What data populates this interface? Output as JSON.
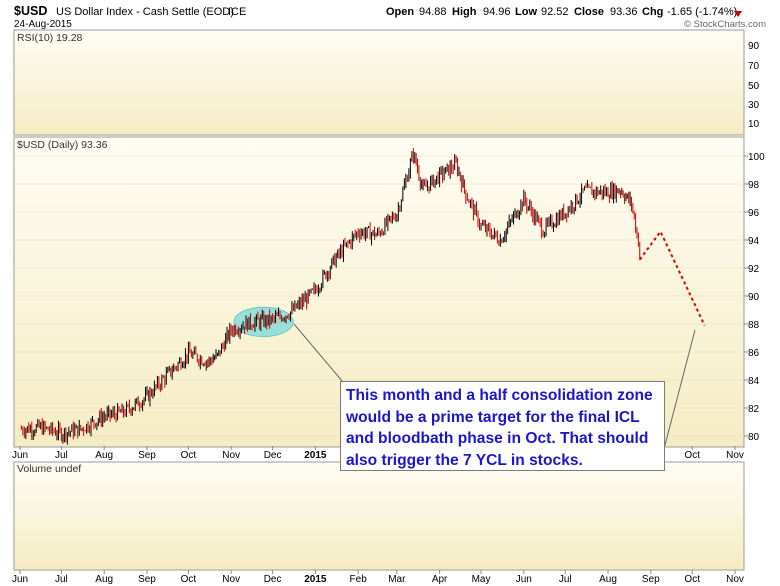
{
  "header": {
    "symbol": "$USD",
    "name": "US Dollar Index - Cash Settle (EOD)",
    "exchange": "ICE",
    "date": "24-Aug-2015",
    "watermark": "© StockCharts.com",
    "open_label": "Open",
    "open": "94.88",
    "high_label": "High",
    "high": "94.96",
    "low_label": "Low",
    "low": "92.52",
    "close_label": "Close",
    "close": "93.36",
    "chg_label": "Chg",
    "chg": "-1.65 (-1.74%)"
  },
  "colors": {
    "up": "#000000",
    "down": "#cc0000",
    "projection": "#e00000",
    "highlight": "#7fdad6",
    "callout_text": "#1a17c8",
    "panel_bg_top": "#fffdf4",
    "panel_bg_bottom": "#f5ecc4"
  },
  "panels": {
    "rsi": {
      "label": "RSI(10) 19.28",
      "ticks": [
        "90",
        "70",
        "50",
        "30",
        "10"
      ]
    },
    "price": {
      "label": "$USD (Daily) 93.36"
    },
    "volume": {
      "label": "Volume undef"
    }
  },
  "x_axis": {
    "labels": [
      "Jun",
      "Jul",
      "Aug",
      "Sep",
      "Oct",
      "Nov",
      "Dec",
      "2015",
      "Feb",
      "Mar",
      "Apr",
      "May",
      "Jun",
      "Jul",
      "Aug",
      "Sep",
      "Oct",
      "Nov"
    ]
  },
  "callout": {
    "lines": [
      "This month and a half consolidation zone",
      "would be a prime target for the final ICL",
      "and bloodbath phase in Oct. That should",
      "also trigger the 7 YCL in stocks."
    ]
  },
  "chart_data": {
    "type": "line",
    "title": "$USD US Dollar Index - Cash Settle (EOD)",
    "ylim": [
      79,
      101
    ],
    "y_ticks": [
      80,
      82,
      84,
      86,
      88,
      90,
      92,
      94,
      96,
      98,
      100
    ],
    "series": [
      {
        "name": "$USD (Daily)",
        "x": [
          "2014-06-02",
          "2014-06-16",
          "2014-07-01",
          "2014-07-15",
          "2014-08-01",
          "2014-08-15",
          "2014-09-01",
          "2014-09-15",
          "2014-10-01",
          "2014-10-15",
          "2014-10-22",
          "2014-11-01",
          "2014-11-15",
          "2014-12-01",
          "2014-12-15",
          "2014-12-31",
          "2015-01-15",
          "2015-02-01",
          "2015-02-15",
          "2015-03-01",
          "2015-03-13",
          "2015-03-20",
          "2015-04-01",
          "2015-04-13",
          "2015-04-20",
          "2015-05-01",
          "2015-05-15",
          "2015-06-01",
          "2015-06-15",
          "2015-07-01",
          "2015-07-15",
          "2015-08-01",
          "2015-08-10",
          "2015-08-18",
          "2015-08-24"
        ],
        "values": [
          80.5,
          80.6,
          80.2,
          80.5,
          81.4,
          81.7,
          82.8,
          84.3,
          85.9,
          85.3,
          85.7,
          87.6,
          88.1,
          88.3,
          88.9,
          90.3,
          92.6,
          94.6,
          94.4,
          95.9,
          100.2,
          97.6,
          98.6,
          99.4,
          97.3,
          95.0,
          94.0,
          96.9,
          94.7,
          96.0,
          97.5,
          97.4,
          97.6,
          96.6,
          93.36
        ]
      },
      {
        "name": "",
        "x": [
          "2015-08-24",
          "2015-09-08",
          "2015-10-10"
        ],
        "values": [
          92.6,
          94.6,
          87.9
        ]
      }
    ],
    "highlight_zone": {
      "x": [
        "2014-11-03",
        "2014-12-16"
      ],
      "y": [
        87.1,
        89.2
      ]
    }
  }
}
